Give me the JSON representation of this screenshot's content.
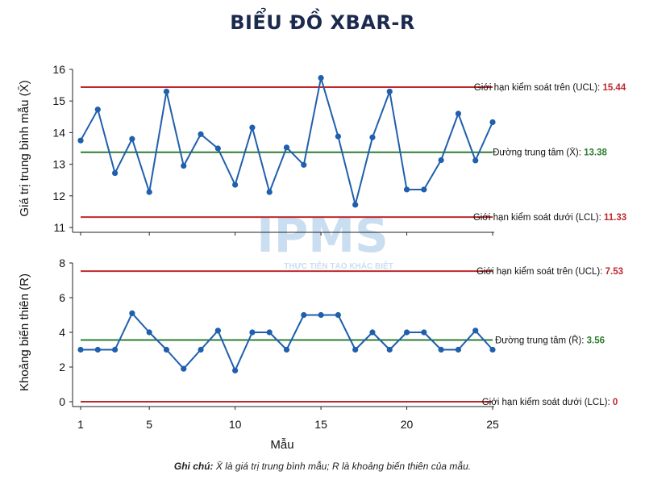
{
  "title": "BIỂU ĐỒ XBAR-R",
  "xlabel": "Mẫu",
  "watermark": {
    "brand": "IPMS",
    "tagline": "THỰC TIỄN TẠO KHÁC BIỆT"
  },
  "note": {
    "prefix": "Ghi chú:",
    "text": " X̄ là giá trị trung bình mẫu; R là khoảng biến thiên của mẫu."
  },
  "colors": {
    "line": "#1f5fad",
    "limit": "#c0272d",
    "center": "#2e7d32",
    "watermark": "#9fc4e6"
  },
  "chart_data": [
    {
      "type": "line",
      "name": "xbar",
      "ylabel": "Giá trị trung bình mẫu (X̄)",
      "xticks": [
        1,
        5,
        10,
        15,
        20,
        25
      ],
      "yticks": [
        11,
        12,
        13,
        14,
        15,
        16
      ],
      "ylim": [
        11,
        16
      ],
      "xlim": [
        1,
        25
      ],
      "x": [
        1,
        2,
        3,
        4,
        5,
        6,
        7,
        8,
        9,
        10,
        11,
        12,
        13,
        14,
        15,
        16,
        17,
        18,
        19,
        20,
        21,
        22,
        23,
        24,
        25
      ],
      "values": [
        13.75,
        14.73,
        12.72,
        13.8,
        12.12,
        15.3,
        12.95,
        13.95,
        13.5,
        12.35,
        14.16,
        12.12,
        13.53,
        12.98,
        15.73,
        13.88,
        11.72,
        13.85,
        15.3,
        12.2,
        12.2,
        13.13,
        14.6,
        13.12,
        14.33
      ],
      "lines": [
        {
          "label": "Giới hạn kiểm soát trên (UCL): ",
          "value_text": "15.44",
          "value": 15.44,
          "kind": "limit"
        },
        {
          "label": "Đường trung tâm (X̄): ",
          "value_text": "13.38",
          "value": 13.38,
          "kind": "center"
        },
        {
          "label": "Giới hạn kiểm soát dưới (LCL): ",
          "value_text": "11.33",
          "value": 11.33,
          "kind": "limit"
        }
      ]
    },
    {
      "type": "line",
      "name": "range",
      "ylabel": "Khoảng biến thiên (R)",
      "xticks": [
        1,
        5,
        10,
        15,
        20,
        25
      ],
      "yticks": [
        0,
        2,
        4,
        6,
        8
      ],
      "ylim": [
        0,
        8
      ],
      "xlim": [
        1,
        25
      ],
      "x": [
        1,
        2,
        3,
        4,
        5,
        6,
        7,
        8,
        9,
        10,
        11,
        12,
        13,
        14,
        15,
        16,
        17,
        18,
        19,
        20,
        21,
        22,
        23,
        24,
        25
      ],
      "values": [
        3,
        3,
        3,
        5.1,
        4,
        3,
        1.9,
        3,
        4.1,
        1.8,
        4,
        4,
        3,
        5,
        5,
        5,
        3,
        4,
        3,
        4,
        4,
        3,
        3,
        4.1,
        3
      ],
      "lines": [
        {
          "label": "Giới hạn kiểm soát trên (UCL): ",
          "value_text": "7.53",
          "value": 7.53,
          "kind": "limit"
        },
        {
          "label": "Đường trung tâm (R̄): ",
          "value_text": "3.56",
          "value": 3.56,
          "kind": "center"
        },
        {
          "label": "Giới hạn kiểm soát dưới (LCL): ",
          "value_text": "0",
          "value": 0,
          "kind": "limit"
        }
      ]
    }
  ]
}
